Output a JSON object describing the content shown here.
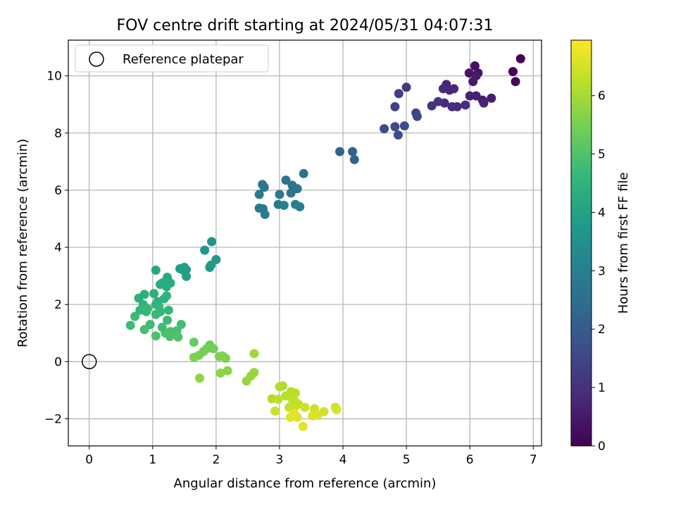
{
  "chart_data": {
    "type": "scatter",
    "title": "FOV centre drift starting at 2024/05/31 04:07:31",
    "xlabel": "Angular distance from reference (arcmin)",
    "ylabel": "Rotation from reference (arcmin)",
    "xlim": [
      -0.33,
      7.13
    ],
    "ylim": [
      -2.95,
      11.25
    ],
    "xticks": [
      0,
      1,
      2,
      3,
      4,
      5,
      6,
      7
    ],
    "yticks": [
      -2,
      0,
      2,
      4,
      6,
      8,
      10
    ],
    "grid": true,
    "legend": {
      "placement": "top-left",
      "entries": [
        "Reference platepar"
      ]
    },
    "reference_point": {
      "x": 0,
      "y": 0,
      "name": "Reference platepar"
    },
    "colorbar": {
      "label": "Hours from first FF file",
      "colormap": "viridis",
      "range": [
        0,
        6.95
      ],
      "ticks": [
        0,
        1,
        2,
        3,
        4,
        5,
        6
      ],
      "colors": [
        "#440154",
        "#482878",
        "#3e4989",
        "#31688e",
        "#26828e",
        "#1f9e89",
        "#35b779",
        "#6ece58",
        "#b5de2b",
        "#fde725"
      ]
    },
    "series": [
      {
        "points": [
          [
            6.8,
            10.6,
            0.02
          ],
          [
            6.68,
            10.15,
            0.08
          ],
          [
            6.72,
            9.8,
            0.12
          ],
          [
            6.08,
            10.35,
            0.3
          ],
          [
            6.13,
            10.1,
            0.35
          ],
          [
            5.99,
            10.1,
            0.4
          ],
          [
            6.05,
            9.8,
            0.45
          ],
          [
            6.1,
            10.0,
            0.5
          ],
          [
            6.34,
            9.22,
            0.55
          ],
          [
            6.2,
            9.15,
            0.6
          ],
          [
            6.1,
            9.3,
            0.62
          ],
          [
            6.0,
            9.3,
            0.65
          ],
          [
            6.22,
            9.05,
            0.7
          ],
          [
            5.63,
            9.7,
            0.75
          ],
          [
            5.68,
            9.5,
            0.78
          ],
          [
            5.75,
            9.55,
            0.8
          ],
          [
            5.58,
            9.55,
            0.83
          ],
          [
            5.6,
            9.05,
            0.85
          ],
          [
            5.72,
            8.92,
            0.88
          ],
          [
            5.8,
            8.92,
            0.9
          ],
          [
            5.93,
            8.98,
            0.92
          ],
          [
            5.5,
            9.1,
            1.05
          ],
          [
            5.4,
            8.95,
            1.1
          ],
          [
            5.0,
            9.6,
            1.2
          ],
          [
            4.88,
            9.38,
            1.25
          ],
          [
            4.82,
            8.92,
            1.35
          ],
          [
            5.15,
            8.7,
            1.4
          ],
          [
            5.17,
            8.58,
            1.45
          ],
          [
            4.82,
            8.22,
            1.55
          ],
          [
            4.65,
            8.15,
            1.6
          ],
          [
            4.97,
            8.25,
            1.62
          ],
          [
            4.87,
            7.93,
            1.65
          ],
          [
            3.95,
            7.35,
            2.1
          ],
          [
            4.15,
            7.35,
            2.15
          ],
          [
            4.18,
            7.07,
            2.2
          ],
          [
            3.38,
            6.58,
            2.6
          ],
          [
            3.1,
            6.35,
            2.65
          ],
          [
            3.2,
            6.17,
            2.68
          ],
          [
            3.28,
            6.05,
            2.7
          ],
          [
            3.18,
            5.9,
            2.72
          ],
          [
            2.73,
            6.2,
            2.75
          ],
          [
            2.76,
            6.1,
            2.78
          ],
          [
            2.68,
            5.85,
            2.8
          ],
          [
            3.0,
            5.85,
            2.82
          ],
          [
            2.68,
            5.37,
            2.85
          ],
          [
            2.74,
            5.35,
            2.88
          ],
          [
            2.77,
            5.15,
            2.9
          ],
          [
            2.98,
            5.5,
            2.92
          ],
          [
            3.07,
            5.47,
            2.95
          ],
          [
            3.25,
            5.5,
            3.0
          ],
          [
            3.32,
            5.42,
            3.02
          ],
          [
            1.93,
            4.2,
            3.6
          ],
          [
            1.82,
            3.9,
            3.65
          ],
          [
            2.0,
            3.57,
            3.7
          ],
          [
            1.9,
            3.3,
            3.72
          ],
          [
            1.92,
            3.38,
            3.74
          ],
          [
            1.5,
            3.3,
            3.85
          ],
          [
            1.48,
            3.2,
            3.87
          ],
          [
            1.53,
            3.22,
            3.88
          ],
          [
            1.43,
            3.25,
            3.9
          ],
          [
            1.53,
            2.98,
            3.92
          ],
          [
            1.05,
            3.2,
            4.1
          ],
          [
            1.12,
            2.7,
            4.15
          ],
          [
            1.2,
            2.8,
            4.18
          ],
          [
            1.23,
            2.95,
            4.2
          ],
          [
            1.28,
            2.75,
            4.22
          ],
          [
            1.22,
            2.62,
            4.25
          ],
          [
            1.15,
            2.75,
            4.28
          ],
          [
            0.87,
            2.35,
            4.35
          ],
          [
            1.02,
            2.38,
            4.38
          ],
          [
            0.78,
            2.22,
            4.4
          ],
          [
            1.08,
            2.1,
            4.42
          ],
          [
            1.18,
            2.2,
            4.45
          ],
          [
            1.22,
            2.3,
            4.47
          ],
          [
            0.85,
            2.0,
            4.5
          ],
          [
            1.05,
            2.0,
            4.52
          ],
          [
            1.1,
            1.92,
            4.55
          ],
          [
            1.25,
            1.8,
            4.57
          ],
          [
            0.8,
            1.8,
            4.6
          ],
          [
            0.9,
            1.75,
            4.62
          ],
          [
            1.12,
            1.75,
            4.64
          ],
          [
            0.92,
            1.85,
            4.66
          ],
          [
            1.05,
            1.65,
            4.68
          ],
          [
            0.72,
            1.58,
            4.7
          ],
          [
            1.23,
            1.45,
            4.72
          ],
          [
            0.65,
            1.27,
            4.75
          ],
          [
            0.96,
            1.3,
            4.78
          ],
          [
            1.15,
            1.2,
            4.8
          ],
          [
            1.45,
            1.3,
            4.82
          ],
          [
            0.87,
            1.12,
            4.85
          ],
          [
            1.2,
            1.0,
            4.88
          ],
          [
            1.28,
            1.05,
            4.9
          ],
          [
            1.38,
            1.08,
            4.92
          ],
          [
            1.05,
            0.9,
            4.95
          ],
          [
            1.27,
            0.88,
            4.97
          ],
          [
            1.4,
            0.86,
            5.0
          ],
          [
            1.65,
            0.68,
            5.3
          ],
          [
            1.9,
            0.58,
            5.35
          ],
          [
            1.96,
            0.45,
            5.4
          ],
          [
            1.85,
            0.45,
            5.42
          ],
          [
            1.8,
            0.35,
            5.45
          ],
          [
            1.73,
            0.22,
            5.5
          ],
          [
            1.65,
            0.15,
            5.52
          ],
          [
            2.05,
            0.18,
            5.55
          ],
          [
            2.15,
            0.12,
            5.57
          ],
          [
            2.1,
            0.2,
            5.6
          ],
          [
            2.18,
            -0.32,
            5.7
          ],
          [
            2.07,
            -0.4,
            5.72
          ],
          [
            1.74,
            -0.58,
            5.75
          ],
          [
            2.48,
            -0.68,
            5.8
          ],
          [
            2.55,
            -0.5,
            5.82
          ],
          [
            2.6,
            -0.38,
            5.85
          ],
          [
            2.6,
            0.28,
            5.88
          ],
          [
            3.05,
            -0.85,
            6.1
          ],
          [
            3.0,
            -0.88,
            6.12
          ],
          [
            2.88,
            -1.3,
            6.15
          ],
          [
            3.1,
            -1.2,
            6.18
          ],
          [
            3.18,
            -1.05,
            6.2
          ],
          [
            3.25,
            -1.1,
            6.22
          ],
          [
            2.98,
            -1.32,
            6.25
          ],
          [
            3.2,
            -1.32,
            6.28
          ],
          [
            3.25,
            -1.4,
            6.3
          ],
          [
            3.3,
            -1.5,
            6.32
          ],
          [
            3.15,
            -1.6,
            6.35
          ],
          [
            3.22,
            -1.65,
            6.38
          ],
          [
            2.93,
            -1.73,
            6.4
          ],
          [
            3.4,
            -1.6,
            6.42
          ],
          [
            3.55,
            -1.65,
            6.45
          ],
          [
            3.7,
            -1.75,
            6.48
          ],
          [
            3.88,
            -1.6,
            6.5
          ],
          [
            3.9,
            -1.68,
            6.52
          ],
          [
            3.6,
            -1.88,
            6.55
          ],
          [
            3.52,
            -1.9,
            6.58
          ],
          [
            3.28,
            -1.95,
            6.6
          ],
          [
            3.17,
            -1.95,
            6.62
          ],
          [
            3.37,
            -2.27,
            6.65
          ],
          [
            3.23,
            -1.82,
            6.7
          ]
        ]
      }
    ]
  }
}
